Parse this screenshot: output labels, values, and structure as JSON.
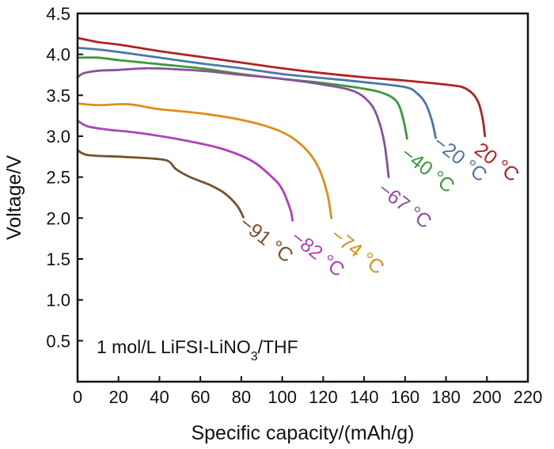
{
  "chart_data": {
    "type": "line",
    "xlabel": "Specific capacity/(mAh/g)",
    "ylabel": "Voltage/V",
    "xlim": [
      0,
      220
    ],
    "ylim": [
      0,
      4.5
    ],
    "xticks": [
      0,
      20,
      40,
      60,
      80,
      100,
      120,
      140,
      160,
      180,
      200,
      220
    ],
    "yticks": [
      0.5,
      1.0,
      1.5,
      2.0,
      2.5,
      3.0,
      3.5,
      4.0,
      4.5
    ],
    "ytick_labels": [
      "0.5",
      "1.0",
      "1.5",
      "2.0",
      "2.5",
      "3.0",
      "3.5",
      "4.0",
      "4.5"
    ],
    "grid": false,
    "annotation": {
      "prefix": "1 mol/L LiFSI-LiNO",
      "subscript": "3",
      "suffix": "/THF"
    },
    "series": [
      {
        "name": "20 °C",
        "color": "#b22222",
        "points": [
          [
            0,
            4.2
          ],
          [
            10,
            4.15
          ],
          [
            20,
            4.12
          ],
          [
            40,
            4.04
          ],
          [
            60,
            3.97
          ],
          [
            80,
            3.9
          ],
          [
            100,
            3.83
          ],
          [
            120,
            3.77
          ],
          [
            140,
            3.72
          ],
          [
            160,
            3.68
          ],
          [
            180,
            3.63
          ],
          [
            188,
            3.6
          ],
          [
            193,
            3.52
          ],
          [
            196,
            3.4
          ],
          [
            198,
            3.2
          ],
          [
            199,
            3.0
          ]
        ]
      },
      {
        "name": "−20 °C",
        "color": "#4a77a8",
        "points": [
          [
            0,
            4.08
          ],
          [
            10,
            4.06
          ],
          [
            20,
            4.03
          ],
          [
            40,
            3.96
          ],
          [
            60,
            3.89
          ],
          [
            80,
            3.83
          ],
          [
            100,
            3.76
          ],
          [
            120,
            3.71
          ],
          [
            140,
            3.66
          ],
          [
            160,
            3.6
          ],
          [
            166,
            3.52
          ],
          [
            170,
            3.4
          ],
          [
            173,
            3.2
          ],
          [
            175,
            2.98
          ]
        ]
      },
      {
        "name": "−40 °C",
        "color": "#3a9a3a",
        "points": [
          [
            0,
            3.96
          ],
          [
            10,
            3.96
          ],
          [
            20,
            3.93
          ],
          [
            40,
            3.88
          ],
          [
            60,
            3.83
          ],
          [
            80,
            3.76
          ],
          [
            100,
            3.7
          ],
          [
            120,
            3.65
          ],
          [
            140,
            3.58
          ],
          [
            150,
            3.52
          ],
          [
            156,
            3.42
          ],
          [
            159,
            3.22
          ],
          [
            161,
            2.97
          ]
        ]
      },
      {
        "name": "−67 °C",
        "color": "#8a4f9e",
        "points": [
          [
            0,
            3.72
          ],
          [
            3,
            3.77
          ],
          [
            10,
            3.8
          ],
          [
            20,
            3.81
          ],
          [
            35,
            3.83
          ],
          [
            60,
            3.8
          ],
          [
            80,
            3.75
          ],
          [
            100,
            3.7
          ],
          [
            120,
            3.63
          ],
          [
            135,
            3.55
          ],
          [
            143,
            3.4
          ],
          [
            147,
            3.2
          ],
          [
            150,
            2.9
          ],
          [
            152,
            2.5
          ]
        ]
      },
      {
        "name": "−74 °C",
        "color": "#e08c1e",
        "points": [
          [
            0,
            3.4
          ],
          [
            10,
            3.38
          ],
          [
            25,
            3.39
          ],
          [
            40,
            3.33
          ],
          [
            60,
            3.28
          ],
          [
            80,
            3.2
          ],
          [
            95,
            3.1
          ],
          [
            105,
            2.98
          ],
          [
            113,
            2.8
          ],
          [
            118,
            2.6
          ],
          [
            122,
            2.3
          ],
          [
            124,
            2.0
          ]
        ]
      },
      {
        "name": "−82 °C",
        "color": "#b040c0",
        "points": [
          [
            0,
            3.19
          ],
          [
            5,
            3.12
          ],
          [
            15,
            3.08
          ],
          [
            30,
            3.04
          ],
          [
            50,
            2.96
          ],
          [
            70,
            2.85
          ],
          [
            85,
            2.7
          ],
          [
            95,
            2.5
          ],
          [
            100,
            2.35
          ],
          [
            104,
            2.1
          ],
          [
            105,
            1.97
          ]
        ]
      },
      {
        "name": "−91 °C",
        "color": "#7a5028",
        "points": [
          [
            0,
            2.83
          ],
          [
            5,
            2.77
          ],
          [
            20,
            2.75
          ],
          [
            35,
            2.73
          ],
          [
            44,
            2.7
          ],
          [
            48,
            2.6
          ],
          [
            55,
            2.5
          ],
          [
            65,
            2.4
          ],
          [
            72,
            2.3
          ],
          [
            78,
            2.15
          ],
          [
            81,
            2.01
          ]
        ]
      }
    ]
  }
}
